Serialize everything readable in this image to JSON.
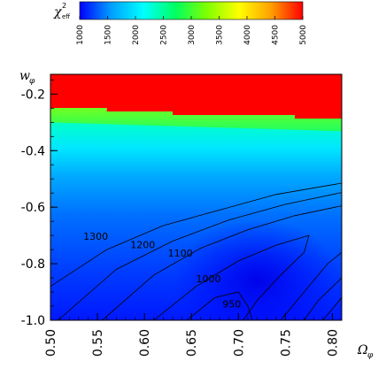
{
  "chart_data": {
    "type": "heatmap",
    "title": "",
    "xlabel": "Ω",
    "xlabel_sub": "φ",
    "ylabel": "w",
    "ylabel_sub": "φ",
    "xlim": [
      0.5,
      0.81
    ],
    "ylim": [
      -1.0,
      -0.13
    ],
    "x_ticks": [
      0.5,
      0.55,
      0.6,
      0.65,
      0.7,
      0.75,
      0.8
    ],
    "x_tick_labels": [
      "0.50",
      "0.55",
      "0.60",
      "0.65",
      "0.70",
      "0.75",
      "0.80"
    ],
    "y_ticks": [
      -0.2,
      -0.4,
      -0.6,
      -0.8,
      -1.0
    ],
    "y_tick_labels": [
      "-0.2",
      "-0.4",
      "-0.6",
      "-0.8",
      "-1.0"
    ],
    "colorbar": {
      "label": "χ",
      "label_sup": "2",
      "label_sub": "eff",
      "range": [
        1000,
        5000
      ],
      "ticks": [
        1000,
        1500,
        2000,
        2500,
        3000,
        3500,
        4000,
        4500,
        5000
      ],
      "tick_labels": [
        "1000",
        "1500",
        "2000",
        "2500",
        "3000",
        "3500",
        "4000",
        "4500",
        "5000"
      ],
      "colors": [
        "#0000ff",
        "#00a0ff",
        "#00ffff",
        "#00ff60",
        "#80ff00",
        "#ffff00",
        "#ffa000",
        "#ff0000"
      ]
    },
    "contours": [
      {
        "level": 1300,
        "label": "1300",
        "points": [
          [
            0.5,
            -0.88
          ],
          [
            0.56,
            -0.75
          ],
          [
            0.62,
            -0.665
          ],
          [
            0.68,
            -0.61
          ],
          [
            0.74,
            -0.555
          ],
          [
            0.81,
            -0.515
          ]
        ]
      },
      {
        "level": 1200,
        "label": "1200",
        "points": [
          [
            0.508,
            -1.0
          ],
          [
            0.57,
            -0.82
          ],
          [
            0.63,
            -0.72
          ],
          [
            0.69,
            -0.645
          ],
          [
            0.75,
            -0.59
          ],
          [
            0.81,
            -0.548
          ]
        ]
      },
      {
        "level": 1100,
        "label": "1100",
        "points": [
          [
            0.555,
            -1.0
          ],
          [
            0.61,
            -0.84
          ],
          [
            0.66,
            -0.745
          ],
          [
            0.71,
            -0.68
          ],
          [
            0.76,
            -0.63
          ],
          [
            0.81,
            -0.595
          ]
        ]
      },
      {
        "level": 1000,
        "label": "1000",
        "points": [
          [
            0.61,
            -1.0
          ],
          [
            0.655,
            -0.88
          ],
          [
            0.7,
            -0.79
          ],
          [
            0.74,
            -0.735
          ],
          [
            0.775,
            -0.7
          ],
          [
            0.77,
            -0.76
          ],
          [
            0.745,
            -0.84
          ],
          [
            0.72,
            -0.93
          ],
          [
            0.705,
            -1.0
          ]
        ]
      },
      {
        "level": 950,
        "label": "950",
        "points": [
          [
            0.645,
            -1.0
          ],
          [
            0.675,
            -0.92
          ],
          [
            0.7,
            -0.9
          ],
          [
            0.71,
            -0.95
          ],
          [
            0.715,
            -1.0
          ]
        ]
      }
    ],
    "extra_contours": [
      [
        [
          0.745,
          -1.0
        ],
        [
          0.77,
          -0.9
        ],
        [
          0.795,
          -0.8
        ],
        [
          0.81,
          -0.76
        ]
      ],
      [
        [
          0.77,
          -1.0
        ],
        [
          0.785,
          -0.93
        ],
        [
          0.81,
          -0.85
        ]
      ],
      [
        [
          0.79,
          -1.0
        ],
        [
          0.81,
          -0.92
        ]
      ]
    ],
    "field_regions": {
      "red_top": [
        -0.13,
        -0.255
      ],
      "transition_band": [
        -0.255,
        -0.3
      ]
    }
  }
}
